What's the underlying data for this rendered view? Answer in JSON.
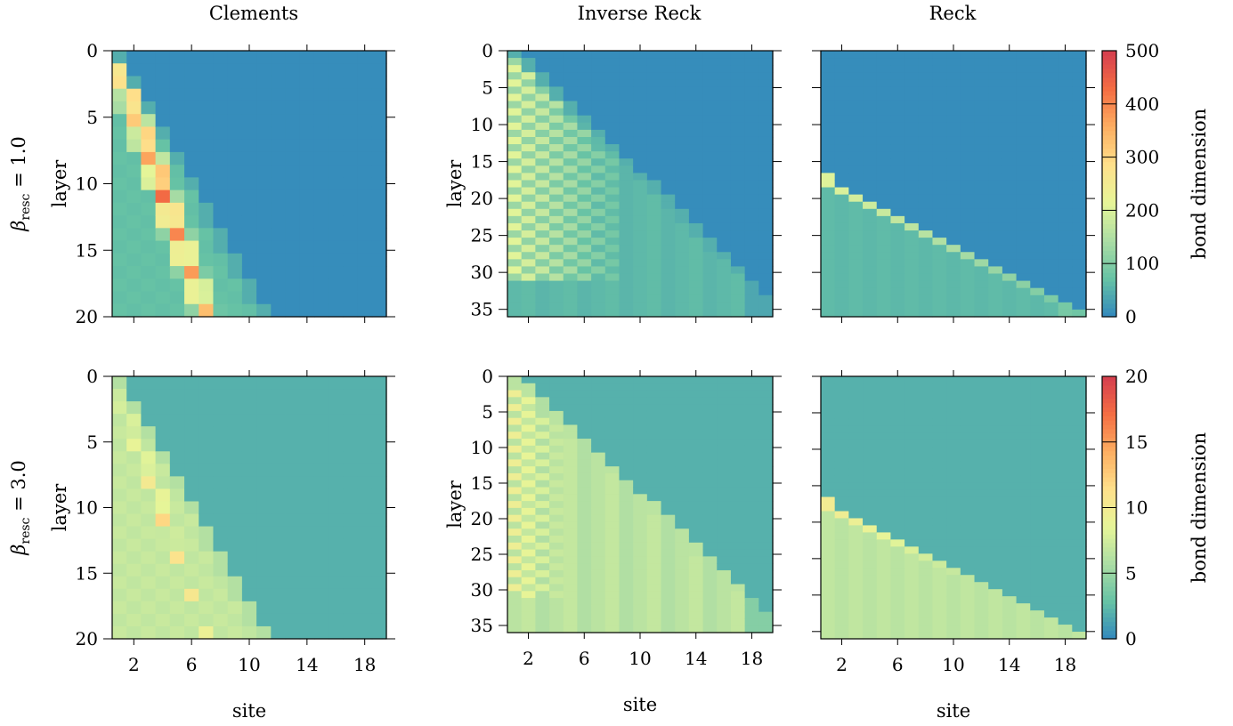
{
  "columns": [
    "Clements",
    "Inverse Reck",
    "Reck"
  ],
  "row_labels": [
    "β_resc = 1.0",
    "β_resc = 3.0"
  ],
  "colors": {
    "colormap": [
      "#3288bd",
      "#66c2a5",
      "#abdda4",
      "#e6f598",
      "#fee08b",
      "#fdae61",
      "#f46d43",
      "#d53e4f"
    ]
  },
  "chart_data": [
    {
      "type": "heatmap",
      "name": "clements-beta1",
      "title": "Clements",
      "ylabel": "layer",
      "xlabel": "",
      "row_label": "β_resc = 1.0",
      "x_range": [
        1,
        19
      ],
      "y_range": [
        0,
        20
      ],
      "x_ticks": [
        2,
        6,
        10,
        14,
        18
      ],
      "y_ticks": [
        0,
        5,
        10,
        15,
        20
      ],
      "x_tick_labels_visible": false,
      "colorbar_range": [
        0,
        500
      ],
      "pattern": "clements",
      "peak": 470,
      "fill": 75
    },
    {
      "type": "heatmap",
      "name": "inverse-reck-beta1",
      "title": "Inverse Reck",
      "ylabel": "layer",
      "xlabel": "",
      "x_range": [
        1,
        19
      ],
      "y_range": [
        0,
        36
      ],
      "x_ticks": [
        2,
        6,
        10,
        14,
        18
      ],
      "y_ticks": [
        0,
        5,
        10,
        15,
        20,
        25,
        30,
        35
      ],
      "x_tick_labels_visible": false,
      "colorbar_range": [
        0,
        500
      ],
      "pattern": "inverse_reck",
      "peak": 210,
      "fill": 70
    },
    {
      "type": "heatmap",
      "name": "reck-beta1",
      "title": "Reck",
      "ylabel": "",
      "xlabel": "",
      "x_range": [
        1,
        19
      ],
      "y_range": [
        0,
        36
      ],
      "x_ticks": [
        2,
        6,
        10,
        14,
        18
      ],
      "y_ticks": [
        0,
        5,
        10,
        15,
        20,
        25,
        30,
        35
      ],
      "x_tick_labels_visible": false,
      "y_tick_labels_visible": false,
      "colorbar_range": [
        0,
        500
      ],
      "pattern": "reck",
      "peak": 205,
      "fill": 70
    },
    {
      "type": "heatmap",
      "name": "clements-beta3",
      "title": "",
      "ylabel": "layer",
      "xlabel": "site",
      "row_label": "β_resc = 3.0",
      "x_range": [
        1,
        19
      ],
      "y_range": [
        0,
        20
      ],
      "x_ticks": [
        2,
        6,
        10,
        14,
        18
      ],
      "y_ticks": [
        0,
        5,
        10,
        15,
        20
      ],
      "colorbar_range": [
        0,
        20
      ],
      "pattern": "clements",
      "peak": 13,
      "fill": 7.5
    },
    {
      "type": "heatmap",
      "name": "inverse-reck-beta3",
      "title": "",
      "ylabel": "layer",
      "xlabel": "site",
      "x_range": [
        1,
        19
      ],
      "y_range": [
        0,
        36
      ],
      "x_ticks": [
        2,
        6,
        10,
        14,
        18
      ],
      "y_ticks": [
        0,
        5,
        10,
        15,
        20,
        25,
        30,
        35
      ],
      "colorbar_range": [
        0,
        20
      ],
      "pattern": "inverse_reck",
      "peak": 9.5,
      "fill": 7.5
    },
    {
      "type": "heatmap",
      "name": "reck-beta3",
      "title": "",
      "ylabel": "",
      "xlabel": "site",
      "x_range": [
        1,
        19
      ],
      "y_range": [
        0,
        36
      ],
      "x_ticks": [
        2,
        6,
        10,
        14,
        18
      ],
      "y_ticks": [
        0,
        5,
        10,
        15,
        20,
        25,
        30,
        35
      ],
      "y_tick_labels_visible": false,
      "colorbar_range": [
        0,
        20
      ],
      "pattern": "reck",
      "peak": 10,
      "fill": 7.5
    }
  ],
  "colorbars": [
    {
      "label": "bond dimension",
      "min": 0,
      "max": 500,
      "ticks": [
        0,
        100,
        200,
        300,
        400,
        500
      ]
    },
    {
      "label": "bond dimension",
      "min": 0,
      "max": 20,
      "ticks": [
        0,
        5,
        10,
        15,
        20
      ]
    }
  ]
}
